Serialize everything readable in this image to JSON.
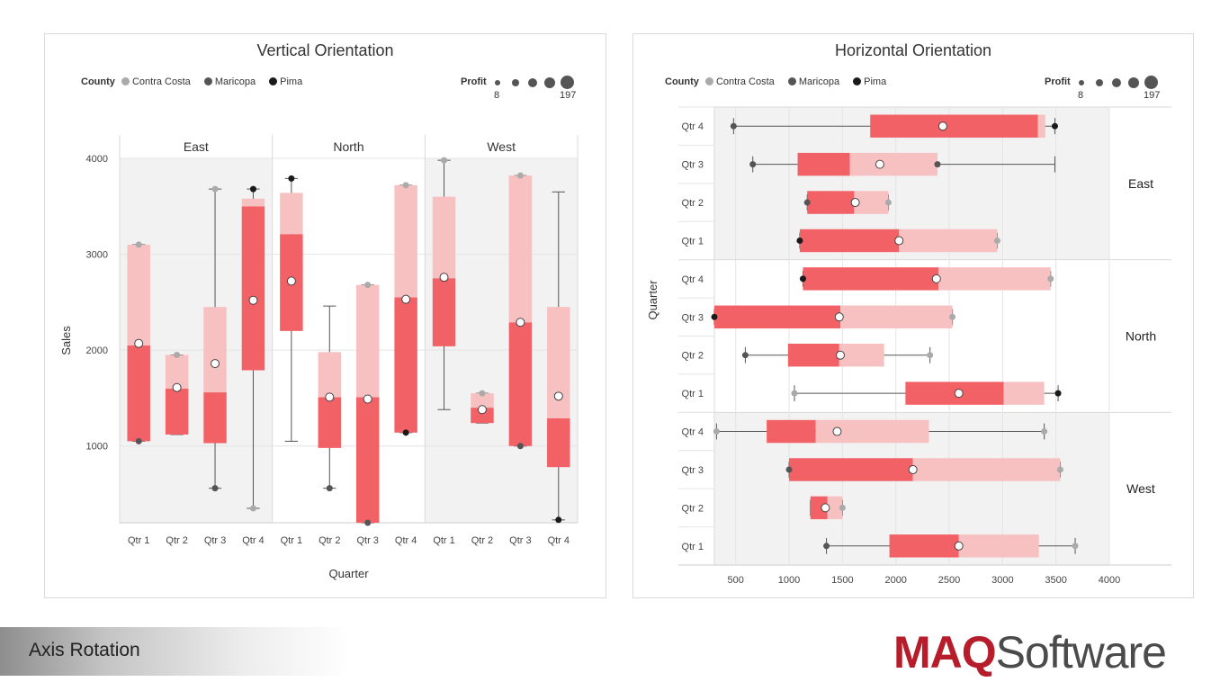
{
  "colors": {
    "lower_box": "#f26166",
    "upper_box": "#f7c1c1",
    "contra_costa": "#aaaaaa",
    "maricopa": "#555555",
    "pima": "#1a1a1a",
    "mean_fill": "#ffffff",
    "whisker": "#555555"
  },
  "legend": {
    "county_label": "County",
    "items": [
      {
        "name": "Contra Costa",
        "color": "#aaaaaa"
      },
      {
        "name": "Maricopa",
        "color": "#555555"
      },
      {
        "name": "Pima",
        "color": "#1a1a1a"
      }
    ],
    "profit_label": "Profit",
    "profit_min": "8",
    "profit_max": "197"
  },
  "footer": {
    "title": "Axis Rotation",
    "logo_maq": "MAQ",
    "logo_software": "Software"
  },
  "chart_data": [
    {
      "type": "boxplot",
      "orientation": "vertical",
      "title": "Vertical Orientation",
      "xlabel": "Quarter",
      "ylabel": "Sales",
      "ylim": [
        200,
        4000
      ],
      "yticks": [
        1000,
        2000,
        3000,
        4000
      ],
      "groups": [
        {
          "name": "East",
          "quarters": [
            {
              "label": "Qtr 1",
              "min": 1050,
              "q1": 1050,
              "median": 2050,
              "q3": 3100,
              "max": 3100,
              "mean": 2070,
              "points": [
                {
                  "v": 1050,
                  "c": "maricopa"
                },
                {
                  "v": 3100,
                  "c": "contra_costa"
                }
              ]
            },
            {
              "label": "Qtr 2",
              "min": 1120,
              "q1": 1120,
              "median": 1600,
              "q3": 1950,
              "max": 1950,
              "mean": 1610,
              "points": [
                {
                  "v": 1950,
                  "c": "contra_costa"
                }
              ]
            },
            {
              "label": "Qtr 3",
              "min": 560,
              "q1": 1030,
              "median": 1560,
              "q3": 2450,
              "max": 3680,
              "mean": 1860,
              "points": [
                {
                  "v": 560,
                  "c": "maricopa"
                },
                {
                  "v": 3680,
                  "c": "contra_costa"
                }
              ]
            },
            {
              "label": "Qtr 4",
              "min": 350,
              "q1": 1790,
              "median": 3500,
              "q3": 3580,
              "max": 3680,
              "mean": 2520,
              "points": [
                {
                  "v": 350,
                  "c": "contra_costa"
                },
                {
                  "v": 3680,
                  "c": "pima"
                }
              ]
            }
          ]
        },
        {
          "name": "North",
          "quarters": [
            {
              "label": "Qtr 1",
              "min": 1050,
              "q1": 2200,
              "median": 3210,
              "q3": 3640,
              "max": 3790,
              "mean": 2720,
              "points": [
                {
                  "v": 3790,
                  "c": "pima"
                }
              ]
            },
            {
              "label": "Qtr 2",
              "min": 560,
              "q1": 980,
              "median": 1510,
              "q3": 1980,
              "max": 2460,
              "mean": 1510,
              "points": [
                {
                  "v": 560,
                  "c": "maricopa"
                }
              ]
            },
            {
              "label": "Qtr 3",
              "min": 200,
              "q1": 200,
              "median": 1510,
              "q3": 2680,
              "max": 2680,
              "mean": 1490,
              "points": [
                {
                  "v": 200,
                  "c": "maricopa"
                },
                {
                  "v": 2680,
                  "c": "contra_costa"
                }
              ]
            },
            {
              "label": "Qtr 4",
              "min": 1140,
              "q1": 1140,
              "median": 2550,
              "q3": 3720,
              "max": 3720,
              "mean": 2530,
              "points": [
                {
                  "v": 1140,
                  "c": "pima"
                },
                {
                  "v": 3720,
                  "c": "contra_costa"
                }
              ]
            }
          ]
        },
        {
          "name": "West",
          "quarters": [
            {
              "label": "Qtr 1",
              "min": 1380,
              "q1": 2040,
              "median": 2750,
              "q3": 3600,
              "max": 3980,
              "mean": 2760,
              "points": [
                {
                  "v": 3980,
                  "c": "contra_costa"
                }
              ]
            },
            {
              "label": "Qtr 2",
              "min": 1240,
              "q1": 1240,
              "median": 1400,
              "q3": 1550,
              "max": 1550,
              "mean": 1380,
              "points": [
                {
                  "v": 1550,
                  "c": "contra_costa"
                }
              ]
            },
            {
              "label": "Qtr 3",
              "min": 1000,
              "q1": 1000,
              "median": 2290,
              "q3": 3820,
              "max": 3820,
              "mean": 2290,
              "points": [
                {
                  "v": 1000,
                  "c": "maricopa"
                },
                {
                  "v": 3820,
                  "c": "contra_costa"
                }
              ]
            },
            {
              "label": "Qtr 4",
              "min": 230,
              "q1": 780,
              "median": 1290,
              "q3": 2450,
              "max": 3650,
              "mean": 1520,
              "points": [
                {
                  "v": 230,
                  "c": "pima"
                }
              ]
            }
          ]
        }
      ]
    },
    {
      "type": "boxplot",
      "orientation": "horizontal",
      "title": "Horizontal Orientation",
      "ylabel": "Quarter",
      "xlim": [
        300,
        4000
      ],
      "xticks": [
        500,
        1000,
        1500,
        2000,
        2500,
        3000,
        3500,
        4000
      ],
      "groups": [
        {
          "name": "East",
          "quarters": [
            {
              "label": "Qtr 4",
              "min": 480,
              "q1": 1760,
              "median": 3330,
              "q3": 3400,
              "max": 3490,
              "mean": 2440,
              "points": [
                {
                  "v": 480,
                  "c": "maricopa"
                },
                {
                  "v": 3490,
                  "c": "pima"
                }
              ]
            },
            {
              "label": "Qtr 3",
              "min": 660,
              "q1": 1080,
              "median": 1570,
              "q3": 2390,
              "max": 3490,
              "mean": 1850,
              "points": [
                {
                  "v": 660,
                  "c": "maricopa"
                },
                {
                  "v": 2390,
                  "c": "maricopa"
                }
              ]
            },
            {
              "label": "Qtr 2",
              "min": 1170,
              "q1": 1170,
              "median": 1610,
              "q3": 1930,
              "max": 1930,
              "mean": 1620,
              "points": [
                {
                  "v": 1170,
                  "c": "maricopa"
                },
                {
                  "v": 1930,
                  "c": "contra_costa"
                }
              ]
            },
            {
              "label": "Qtr 1",
              "min": 1100,
              "q1": 1100,
              "median": 2030,
              "q3": 2950,
              "max": 2950,
              "mean": 2030,
              "points": [
                {
                  "v": 1100,
                  "c": "pima"
                },
                {
                  "v": 2950,
                  "c": "contra_costa"
                }
              ]
            }
          ]
        },
        {
          "name": "North",
          "quarters": [
            {
              "label": "Qtr 4",
              "min": 1130,
              "q1": 1130,
              "median": 2400,
              "q3": 3450,
              "max": 3450,
              "mean": 2380,
              "points": [
                {
                  "v": 1130,
                  "c": "pima"
                },
                {
                  "v": 3450,
                  "c": "contra_costa"
                }
              ]
            },
            {
              "label": "Qtr 3",
              "min": 300,
              "q1": 300,
              "median": 1480,
              "q3": 2530,
              "max": 2530,
              "mean": 1470,
              "points": [
                {
                  "v": 300,
                  "c": "pima"
                },
                {
                  "v": 2530,
                  "c": "contra_costa"
                }
              ]
            },
            {
              "label": "Qtr 2",
              "min": 590,
              "q1": 990,
              "median": 1470,
              "q3": 1890,
              "max": 2320,
              "mean": 1480,
              "points": [
                {
                  "v": 590,
                  "c": "maricopa"
                },
                {
                  "v": 2320,
                  "c": "contra_costa"
                }
              ]
            },
            {
              "label": "Qtr 1",
              "min": 1050,
              "q1": 2090,
              "median": 3010,
              "q3": 3390,
              "max": 3520,
              "mean": 2590,
              "points": [
                {
                  "v": 1050,
                  "c": "contra_costa"
                },
                {
                  "v": 3520,
                  "c": "pima"
                }
              ]
            }
          ]
        },
        {
          "name": "West",
          "quarters": [
            {
              "label": "Qtr 4",
              "min": 320,
              "q1": 790,
              "median": 1250,
              "q3": 2310,
              "max": 3390,
              "mean": 1450,
              "points": [
                {
                  "v": 320,
                  "c": "contra_costa"
                },
                {
                  "v": 3390,
                  "c": "contra_costa"
                }
              ]
            },
            {
              "label": "Qtr 3",
              "min": 1000,
              "q1": 1000,
              "median": 2160,
              "q3": 3540,
              "max": 3540,
              "mean": 2160,
              "points": [
                {
                  "v": 1000,
                  "c": "maricopa"
                },
                {
                  "v": 3540,
                  "c": "contra_costa"
                }
              ]
            },
            {
              "label": "Qtr 2",
              "min": 1200,
              "q1": 1200,
              "median": 1360,
              "q3": 1500,
              "max": 1500,
              "mean": 1340,
              "points": [
                {
                  "v": 1500,
                  "c": "contra_costa"
                }
              ]
            },
            {
              "label": "Qtr 1",
              "min": 1350,
              "q1": 1940,
              "median": 2590,
              "q3": 3340,
              "max": 3680,
              "mean": 2590,
              "points": [
                {
                  "v": 1350,
                  "c": "maricopa"
                },
                {
                  "v": 3680,
                  "c": "contra_costa"
                }
              ]
            }
          ]
        }
      ]
    }
  ]
}
